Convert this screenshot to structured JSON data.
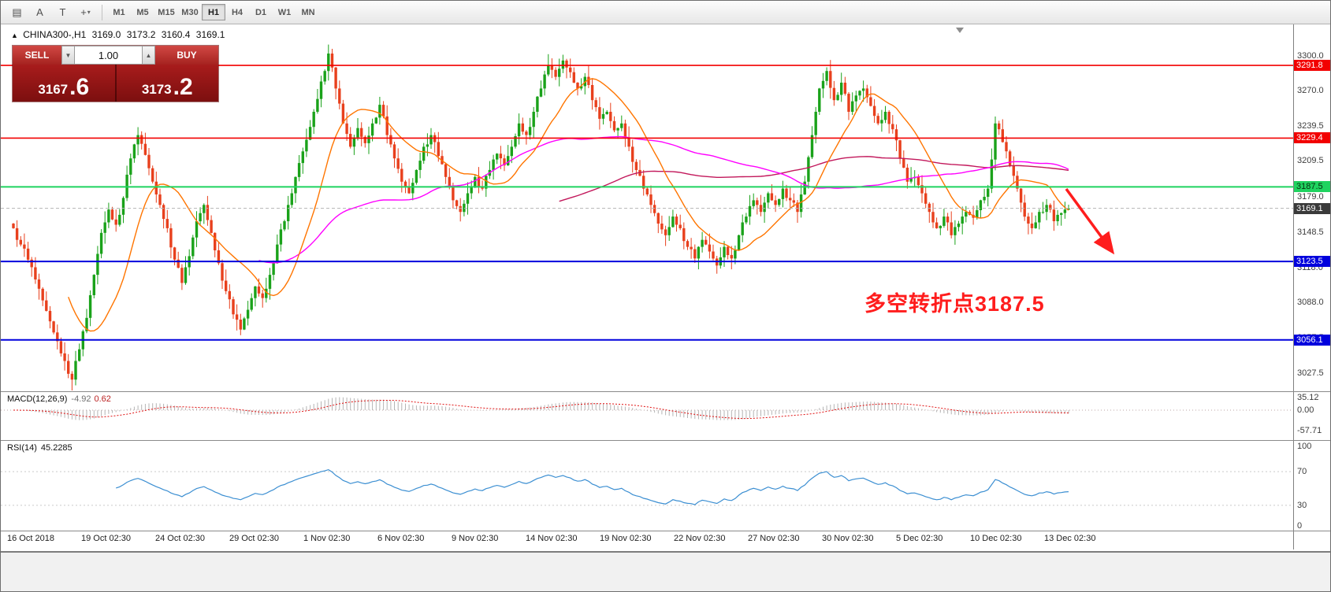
{
  "colors": {
    "up": "#1aa21a",
    "down": "#e8401d",
    "ma_fast": "#ff7500",
    "ma_mid": "#ff00ff",
    "ma_slow": "#c2185b",
    "line_red": "#f20000",
    "line_green": "#1fd35f",
    "line_blue": "#0000dd",
    "line_current": "#b5b5b5",
    "macd_hist": "#b4b4b4",
    "macd_signal": "#e01111",
    "rsi_line": "#3c8fd2",
    "annotation": "#ff1d1d"
  },
  "toolbar": {
    "icons": [
      {
        "name": "chart-window-icon",
        "glyph": "▤"
      },
      {
        "name": "text-label-icon",
        "glyph": "A"
      },
      {
        "name": "template-icon",
        "glyph": "T"
      },
      {
        "name": "cursor-tool-icon",
        "glyph": "+",
        "chevron": "▾"
      }
    ],
    "timeframes": [
      "M1",
      "M5",
      "M15",
      "M30",
      "H1",
      "H4",
      "D1",
      "W1",
      "MN"
    ],
    "selected_timeframe": "H1"
  },
  "quote": {
    "collapse_icon": "▲",
    "symbol": "CHINA300-,H1",
    "open": "3169.0",
    "high": "3173.2",
    "low": "3160.4",
    "close": "3169.1"
  },
  "trade_panel": {
    "sell_label": "SELL",
    "buy_label": "BUY",
    "volume": "1.00",
    "spin_down": "▼",
    "spin_up": "▲",
    "sell_main": "3167",
    "sell_frac": ".6",
    "buy_main": "3173",
    "buy_frac": ".2"
  },
  "price_axis": {
    "ticks": [
      {
        "label": "3300.0",
        "v": 3300.0
      },
      {
        "label": "3270.0",
        "v": 3270.0
      },
      {
        "label": "3239.5",
        "v": 3239.5
      },
      {
        "label": "3209.5",
        "v": 3209.5
      },
      {
        "label": "3179.0",
        "v": 3179.0
      },
      {
        "label": "3148.5",
        "v": 3148.5
      },
      {
        "label": "3118.0",
        "v": 3118.0
      },
      {
        "label": "3088.0",
        "v": 3088.0
      },
      {
        "label": "3057.5",
        "v": 3057.5
      },
      {
        "label": "3027.5",
        "v": 3027.5
      }
    ],
    "badges": [
      {
        "label": "3291.8",
        "v": 3291.8,
        "type": "red"
      },
      {
        "label": "3229.4",
        "v": 3229.4,
        "type": "red"
      },
      {
        "label": "3187.5",
        "v": 3187.5,
        "type": "green"
      },
      {
        "label": "3169.1",
        "v": 3169.1,
        "type": "dark"
      },
      {
        "label": "3123.5",
        "v": 3123.5,
        "type": "blue"
      },
      {
        "label": "3056.1",
        "v": 3056.1,
        "type": "blue"
      }
    ]
  },
  "hlines": [
    {
      "v": 3291.8,
      "type": "red"
    },
    {
      "v": 3229.4,
      "type": "red"
    },
    {
      "v": 3187.5,
      "type": "green"
    },
    {
      "v": 3169.1,
      "type": "current"
    },
    {
      "v": 3123.5,
      "type": "blue"
    },
    {
      "v": 3056.1,
      "type": "blue"
    }
  ],
  "annotation": {
    "text": "多空转折点3187.5"
  },
  "macd": {
    "title": "MACD(12,26,9)",
    "value": "-4.92",
    "signal": "0.62",
    "axis": [
      {
        "label": "35.12",
        "v": 35.12
      },
      {
        "label": "0.00",
        "v": 0
      },
      {
        "label": "-57.71",
        "v": -57.71
      }
    ]
  },
  "rsi": {
    "title": "RSI(14)",
    "value": "45.2285",
    "axis": [
      {
        "label": "100",
        "v": 100
      },
      {
        "label": "70",
        "v": 70
      },
      {
        "label": "30",
        "v": 30
      },
      {
        "label": "0",
        "v": 0
      }
    ],
    "levels": [
      70,
      30
    ]
  },
  "time_axis": [
    "16 Oct 2018",
    "19 Oct 02:30",
    "24 Oct 02:30",
    "29 Oct 02:30",
    "1 Nov 02:30",
    "6 Nov 02:30",
    "9 Nov 02:30",
    "14 Nov 02:30",
    "19 Nov 02:30",
    "22 Nov 02:30",
    "27 Nov 02:30",
    "30 Nov 02:30",
    "5 Dec 02:30",
    "10 Dec 02:30",
    "13 Dec 02:30"
  ],
  "chart_data": {
    "type": "candlestick",
    "symbol": "CHINA300-",
    "timeframe": "H1",
    "title": "CHINA300-,H1 3169.0 3173.2 3160.4 3169.1",
    "ylim": [
      3012,
      3325
    ],
    "x_range": [
      "16 Oct 2018",
      "14 Dec 2018"
    ],
    "note": "closes sampled from chart pixels; opens = previous close, wicks approximate",
    "closes": [
      3152,
      3138,
      3125,
      3108,
      3090,
      3072,
      3055,
      3038,
      3022,
      3048,
      3075,
      3112,
      3148,
      3168,
      3155,
      3178,
      3212,
      3232,
      3215,
      3192,
      3172,
      3152,
      3125,
      3105,
      3128,
      3158,
      3172,
      3148,
      3122,
      3098,
      3078,
      3065,
      3082,
      3102,
      3092,
      3112,
      3138,
      3158,
      3182,
      3208,
      3228,
      3252,
      3278,
      3302,
      3272,
      3242,
      3222,
      3238,
      3225,
      3242,
      3258,
      3232,
      3212,
      3192,
      3182,
      3202,
      3222,
      3232,
      3214,
      3196,
      3176,
      3166,
      3182,
      3196,
      3186,
      3202,
      3216,
      3206,
      3222,
      3242,
      3232,
      3252,
      3272,
      3292,
      3282,
      3296,
      3286,
      3272,
      3282,
      3262,
      3246,
      3252,
      3236,
      3242,
      3222,
      3202,
      3186,
      3172,
      3156,
      3146,
      3162,
      3152,
      3136,
      3126,
      3142,
      3132,
      3120,
      3136,
      3126,
      3146,
      3162,
      3176,
      3166,
      3182,
      3172,
      3186,
      3176,
      3166,
      3192,
      3232,
      3272,
      3287,
      3262,
      3277,
      3252,
      3266,
      3272,
      3257,
      3242,
      3252,
      3237,
      3212,
      3192,
      3196,
      3182,
      3166,
      3152,
      3162,
      3146,
      3156,
      3166,
      3161,
      3176,
      3186,
      3242,
      3226,
      3206,
      3186,
      3162,
      3152,
      3166,
      3172,
      3158,
      3165,
      3169
    ],
    "horizontal_levels": [
      3291.8,
      3229.4,
      3187.5,
      3123.5,
      3056.1
    ],
    "current_price": 3169.1
  }
}
